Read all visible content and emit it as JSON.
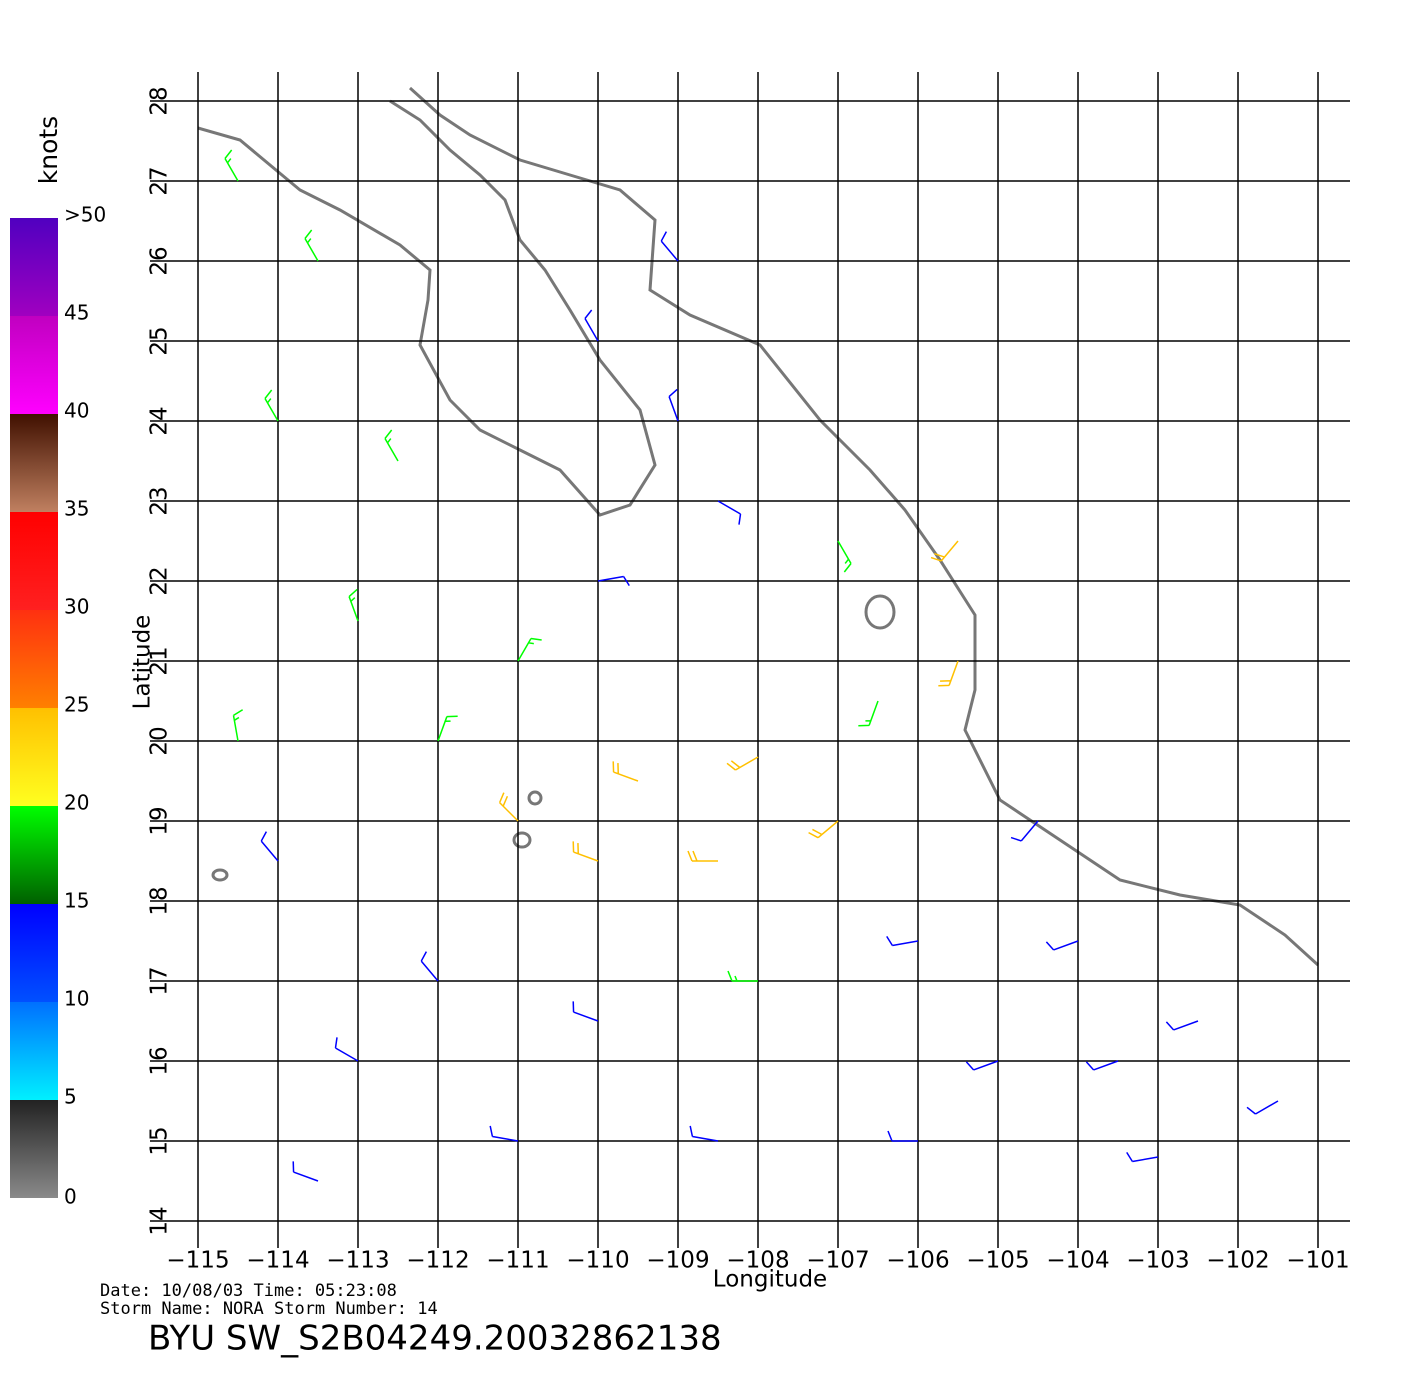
{
  "chart_data": {
    "type": "wind-barbs",
    "info": {
      "date": "Date: 10/08/03   Time: 05:23:08",
      "storm": "Storm  Name: NORA   Storm  Number: 14",
      "file": "BYU  SW_S2B04249.20032862138"
    },
    "xlabel": "Longitude",
    "ylabel": "Latitude",
    "xlim": [
      -115,
      -101
    ],
    "ylim": [
      14,
      28
    ],
    "xticks": [
      {
        "value": -115,
        "label": "−115"
      },
      {
        "value": -114,
        "label": "−114"
      },
      {
        "value": -113,
        "label": "−113"
      },
      {
        "value": -112,
        "label": "−112"
      },
      {
        "value": -111,
        "label": "−111"
      },
      {
        "value": -110,
        "label": "−110"
      },
      {
        "value": -109,
        "label": "−109"
      },
      {
        "value": -108,
        "label": "−108"
      },
      {
        "value": -107,
        "label": "−107"
      },
      {
        "value": -106,
        "label": "−106"
      },
      {
        "value": -105,
        "label": "−105"
      },
      {
        "value": -104,
        "label": "−104"
      },
      {
        "value": -103,
        "label": "−103"
      },
      {
        "value": -102,
        "label": "−102"
      },
      {
        "value": -101,
        "label": "−101"
      }
    ],
    "yticks": [
      14,
      15,
      16,
      17,
      18,
      19,
      20,
      21,
      22,
      23,
      24,
      25,
      26,
      27,
      28
    ],
    "grid": true,
    "colorbar": {
      "title": "knots",
      "range": [
        0,
        50
      ],
      "ticks": [
        0,
        5,
        10,
        15,
        20,
        25,
        30,
        35,
        40,
        45,
        {
          "value": 50,
          "label": ">50"
        }
      ],
      "colors": [
        [
          "#8a8a8a",
          "#222222"
        ],
        [
          "#00f0ff",
          "#0070ff"
        ],
        [
          "#0050ff",
          "#0000ff"
        ],
        [
          "#006000",
          "#00ff00"
        ],
        [
          "#ffff20",
          "#ffc000"
        ],
        [
          "#ff8000",
          "#ff3010"
        ],
        [
          "#ff2020",
          "#ff0000"
        ],
        [
          "#c08060",
          "#401000"
        ],
        [
          "#ff00ff",
          "#c000c0"
        ],
        [
          "#a000c0",
          "#5000c0"
        ]
      ]
    },
    "barbs": {
      "lon": [
        -114.5,
        -113.5,
        -114,
        -112.5,
        -113,
        -114.5,
        -112,
        -111,
        -110,
        -108.5,
        -107,
        -106.5,
        -107,
        -108.5,
        -110,
        -111,
        -109.5,
        -108,
        -110,
        -109,
        -105.5,
        -105.5,
        -112,
        -110,
        -108,
        -106,
        -104,
        -102.5,
        -101.5,
        -103,
        -106,
        -108.5,
        -111,
        -113,
        -114,
        -113.5,
        -109,
        -104.5,
        -105,
        -103.5
      ],
      "lat": [
        27,
        26,
        24,
        23.5,
        21.5,
        20,
        20,
        19,
        18.5,
        18.5,
        19,
        20.5,
        22.5,
        23,
        22,
        21,
        19.5,
        19.8,
        25,
        26,
        21,
        22.5,
        17,
        16.5,
        17,
        17.5,
        17.5,
        16.5,
        15.5,
        14.8,
        15,
        15,
        15,
        16,
        18.5,
        14.5,
        24,
        19,
        16,
        16
      ],
      "speed": [
        17,
        17,
        17,
        17,
        17,
        17,
        18,
        20,
        22,
        22,
        20,
        18,
        15,
        10,
        12,
        15,
        22,
        22,
        12,
        10,
        20,
        20,
        13,
        14,
        15,
        13,
        12,
        10,
        10,
        12,
        11,
        12,
        10,
        11,
        12,
        10,
        12,
        10,
        11,
        10
      ],
      "dir": [
        330,
        330,
        330,
        330,
        340,
        350,
        20,
        315,
        290,
        270,
        230,
        200,
        150,
        120,
        80,
        30,
        290,
        240,
        330,
        320,
        200,
        220,
        320,
        290,
        270,
        260,
        250,
        250,
        240,
        260,
        270,
        280,
        280,
        300,
        320,
        290,
        340,
        220,
        250,
        250
      ]
    }
  }
}
